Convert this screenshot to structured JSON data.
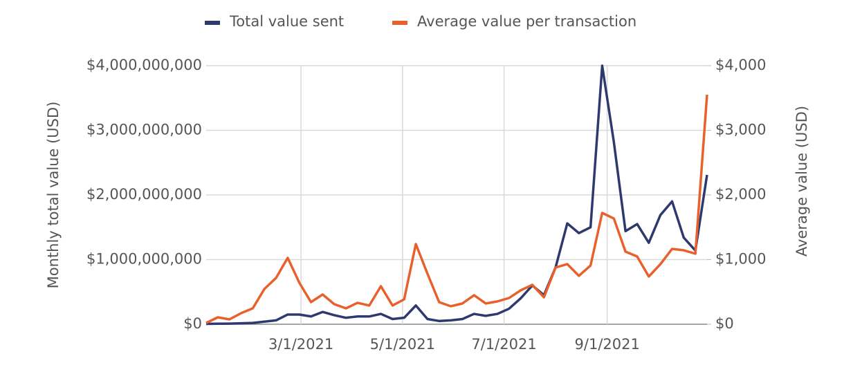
{
  "chart_data": {
    "type": "line",
    "x": [
      "1/3/2021",
      "1/10/2021",
      "1/17/2021",
      "1/24/2021",
      "1/31/2021",
      "2/7/2021",
      "2/14/2021",
      "2/21/2021",
      "2/28/2021",
      "3/7/2021",
      "3/14/2021",
      "3/21/2021",
      "3/28/2021",
      "4/4/2021",
      "4/11/2021",
      "4/18/2021",
      "4/25/2021",
      "5/2/2021",
      "5/9/2021",
      "5/16/2021",
      "5/23/2021",
      "5/30/2021",
      "6/6/2021",
      "6/13/2021",
      "6/20/2021",
      "6/27/2021",
      "7/4/2021",
      "7/11/2021",
      "7/18/2021",
      "7/25/2021",
      "8/1/2021",
      "8/8/2021",
      "8/15/2021",
      "8/22/2021",
      "8/29/2021",
      "9/5/2021",
      "9/12/2021",
      "9/19/2021",
      "9/26/2021",
      "10/3/2021",
      "10/10/2021",
      "10/17/2021",
      "10/24/2021",
      "10/31/2021"
    ],
    "xlim": [
      "1/3/2021",
      "10/31/2021"
    ],
    "xticks": [
      "3/1/2021",
      "5/1/2021",
      "7/1/2021",
      "9/1/2021"
    ],
    "y_label": "Monthly total value (USD)",
    "y2_label": "Average value (USD)",
    "ylim": [
      0,
      4000000000
    ],
    "yticks": [
      {
        "value": 0,
        "label": "$0"
      },
      {
        "value": 1000000000,
        "label": "$1,000,000,000"
      },
      {
        "value": 2000000000,
        "label": "$2,000,000,000"
      },
      {
        "value": 3000000000,
        "label": "$3,000,000,000"
      },
      {
        "value": 4000000000,
        "label": "$4,000,000,000"
      }
    ],
    "y2lim": [
      0,
      4000
    ],
    "y2ticks": [
      {
        "value": 0,
        "label": "$0"
      },
      {
        "value": 1000,
        "label": "$1,000"
      },
      {
        "value": 2000,
        "label": "$2,000"
      },
      {
        "value": 3000,
        "label": "$3,000"
      },
      {
        "value": 4000,
        "label": "$4,000"
      }
    ],
    "grid": true,
    "legend": "top",
    "series": [
      {
        "name": "Total value sent",
        "color": "#2e3a6e",
        "values": [
          5000000,
          8000000,
          10000000,
          15000000,
          20000000,
          40000000,
          60000000,
          150000000,
          150000000,
          120000000,
          190000000,
          140000000,
          100000000,
          120000000,
          120000000,
          160000000,
          80000000,
          100000000,
          290000000,
          80000000,
          50000000,
          60000000,
          80000000,
          160000000,
          130000000,
          160000000,
          240000000,
          400000000,
          600000000,
          450000000,
          880000000,
          1560000000,
          1410000000,
          1500000000,
          4000000000,
          2820000000,
          1440000000,
          1550000000,
          1260000000,
          1690000000,
          1900000000,
          1340000000,
          1140000000,
          2310000000
        ]
      },
      {
        "name": "Average value per transaction",
        "color": "#e8612c",
        "axis": "y2",
        "values": [
          20,
          107,
          75,
          171,
          246,
          545,
          717,
          1027,
          642,
          342,
          460,
          310,
          246,
          331,
          289,
          588,
          289,
          385,
          1241,
          781,
          342,
          278,
          321,
          449,
          321,
          353,
          406,
          524,
          610,
          417,
          877,
          930,
          749,
          909,
          1722,
          1636,
          1123,
          1048,
          738,
          930,
          1166,
          1144,
          1091,
          3551
        ]
      }
    ]
  }
}
